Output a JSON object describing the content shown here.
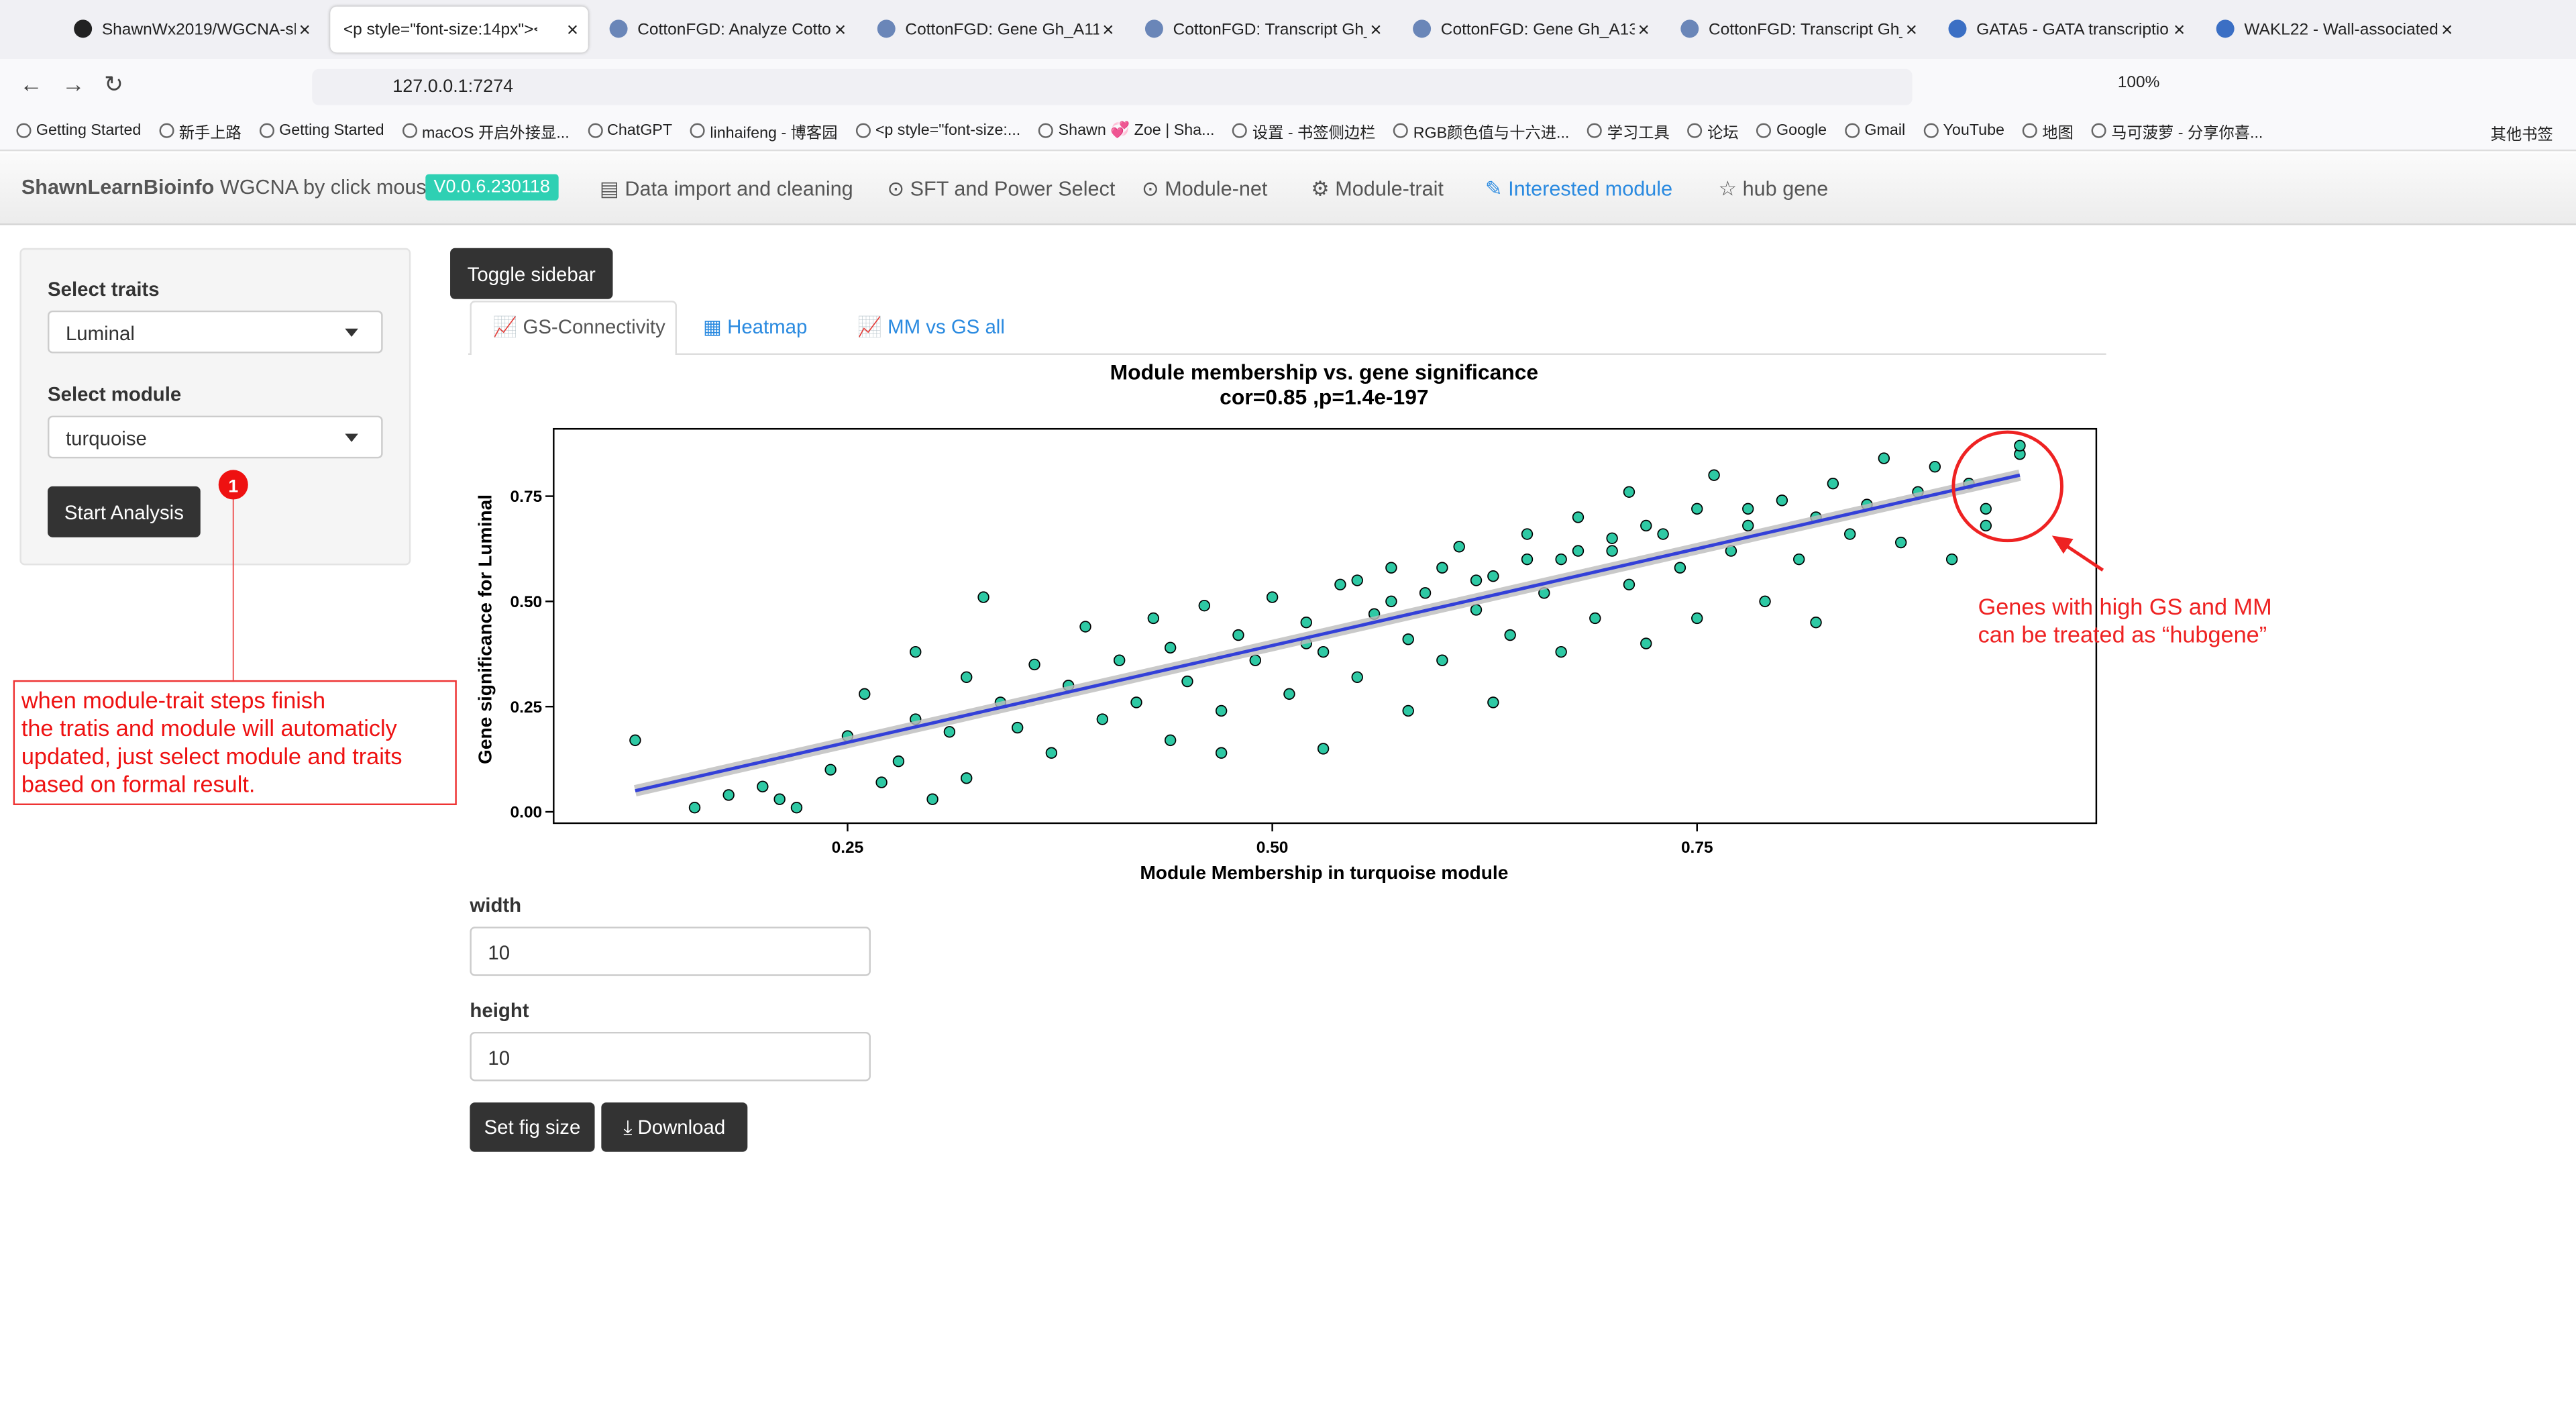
{
  "browser": {
    "tabs": [
      "ShawnWx2019/WGCNA-sh",
      "<p style=\"font-size:14px\"><b>",
      "CottonFGD: Analyze Cotto",
      "CottonFGD: Gene Gh_A11G",
      "CottonFGD: Transcript Gh_",
      "CottonFGD: Gene Gh_A13G",
      "CottonFGD: Transcript Gh_",
      "GATA5 - GATA transcriptio",
      "WAKL22 - Wall-associated"
    ],
    "url": "127.0.0.1:7274",
    "zoom": "100%",
    "bookmarks": [
      "Getting Started",
      "新手上路",
      "Getting Started",
      "macOS 开启外接显...",
      "ChatGPT",
      "linhaifeng - 博客园",
      "<p style=\"font-size:...",
      "Shawn 💞 Zoe | Sha...",
      "设置 - 书签侧边栏",
      "RGB颜色值与十六进...",
      "学习工具",
      "论坛",
      "Google",
      "Gmail",
      "YouTube",
      "地图",
      "马可菠萝 - 分享你喜..."
    ],
    "other_bookmarks": "其他书签"
  },
  "navbar": {
    "brand": "ShawnLearnBioinfo",
    "brand_suffix": "WGCNA by click mouse",
    "version": "V0.0.6.230118",
    "items": [
      "Data import and cleaning",
      "SFT and Power Select",
      "Module-net",
      "Module-trait",
      "Interested module",
      "hub gene"
    ],
    "active": 4
  },
  "sidebar": {
    "traits_label": "Select traits",
    "traits_value": "Luminal",
    "module_label": "Select module",
    "module_value": "turquoise",
    "button": "Start Analysis"
  },
  "toggle": "Toggle sidebar",
  "tabs": [
    "GS-Connectivity",
    "Heatmap",
    "MM vs GS all"
  ],
  "chart_data": {
    "type": "scatter",
    "title": "Module membership vs. gene significance",
    "subtitle": "cor=0.85 ,p=1.4e-197",
    "x_label": "Module Membership in turquoise module",
    "y_label": "Gene significance for  Luminal",
    "color": "#2ec9a4",
    "line_color": "#3340d8",
    "x": [
      0.125,
      0.16,
      0.18,
      0.2,
      0.21,
      0.22,
      0.24,
      0.25,
      0.26,
      0.27,
      0.28,
      0.29,
      0.29,
      0.3,
      0.31,
      0.32,
      0.32,
      0.33,
      0.34,
      0.35,
      0.36,
      0.37,
      0.38,
      0.39,
      0.4,
      0.41,
      0.42,
      0.43,
      0.44,
      0.44,
      0.45,
      0.46,
      0.47,
      0.47,
      0.48,
      0.49,
      0.5,
      0.51,
      0.52,
      0.53,
      0.53,
      0.54,
      0.55,
      0.56,
      0.57,
      0.58,
      0.58,
      0.59,
      0.6,
      0.61,
      0.62,
      0.63,
      0.63,
      0.64,
      0.65,
      0.66,
      0.67,
      0.67,
      0.68,
      0.69,
      0.7,
      0.71,
      0.71,
      0.72,
      0.73,
      0.74,
      0.75,
      0.75,
      0.76,
      0.77,
      0.78,
      0.79,
      0.8,
      0.81,
      0.82,
      0.82,
      0.83,
      0.84,
      0.85,
      0.86,
      0.87,
      0.88,
      0.89,
      0.9,
      0.91,
      0.92,
      0.92,
      0.94,
      0.94,
      0.55,
      0.6,
      0.65,
      0.7,
      0.62,
      0.68,
      0.72,
      0.78,
      0.57,
      0.52
    ],
    "y": [
      0.17,
      0.01,
      0.04,
      0.06,
      0.03,
      0.01,
      0.1,
      0.18,
      0.28,
      0.07,
      0.12,
      0.22,
      0.38,
      0.03,
      0.19,
      0.32,
      0.08,
      0.51,
      0.26,
      0.2,
      0.35,
      0.14,
      0.3,
      0.44,
      0.22,
      0.36,
      0.26,
      0.46,
      0.17,
      0.39,
      0.31,
      0.49,
      0.24,
      0.14,
      0.42,
      0.36,
      0.51,
      0.28,
      0.45,
      0.15,
      0.38,
      0.54,
      0.32,
      0.47,
      0.58,
      0.24,
      0.41,
      0.52,
      0.36,
      0.63,
      0.48,
      0.26,
      0.56,
      0.42,
      0.66,
      0.52,
      0.38,
      0.6,
      0.7,
      0.46,
      0.62,
      0.54,
      0.76,
      0.4,
      0.66,
      0.58,
      0.72,
      0.46,
      0.8,
      0.62,
      0.68,
      0.5,
      0.74,
      0.6,
      0.7,
      0.45,
      0.78,
      0.66,
      0.73,
      0.84,
      0.64,
      0.76,
      0.82,
      0.6,
      0.78,
      0.72,
      0.68,
      0.85,
      0.87,
      0.55,
      0.58,
      0.6,
      0.65,
      0.55,
      0.62,
      0.68,
      0.72,
      0.5,
      0.4
    ],
    "fit_line": {
      "x": [
        0.125,
        0.94
      ],
      "y": [
        0.05,
        0.8
      ]
    },
    "xlim": [
      0.077,
      0.985
    ],
    "ylim": [
      -0.027,
      0.91
    ],
    "xticks": [
      {
        "value": 0.25,
        "label": "0.25"
      },
      {
        "value": 0.5,
        "label": "0.50"
      },
      {
        "value": 0.75,
        "label": "0.75"
      }
    ],
    "yticks": [
      {
        "value": 0,
        "label": "0.00"
      },
      {
        "value": 0.25,
        "label": "0.25"
      },
      {
        "value": 0.5,
        "label": "0.50"
      },
      {
        "value": 0.75,
        "label": "0.75"
      }
    ]
  },
  "fig": {
    "width_label": "width",
    "width_value": "10",
    "height_label": "height",
    "height_value": "10",
    "set_button": "Set fig size",
    "download_button": "Download"
  },
  "annotations": {
    "badge": "1",
    "note": [
      "when module-trait steps finish",
      "the tratis and module will automaticly",
      "updated,  just select module and traits",
      "based on formal result."
    ],
    "hub_note": [
      "Genes with high GS and MM",
      "can be treated as “hubgene”"
    ]
  }
}
